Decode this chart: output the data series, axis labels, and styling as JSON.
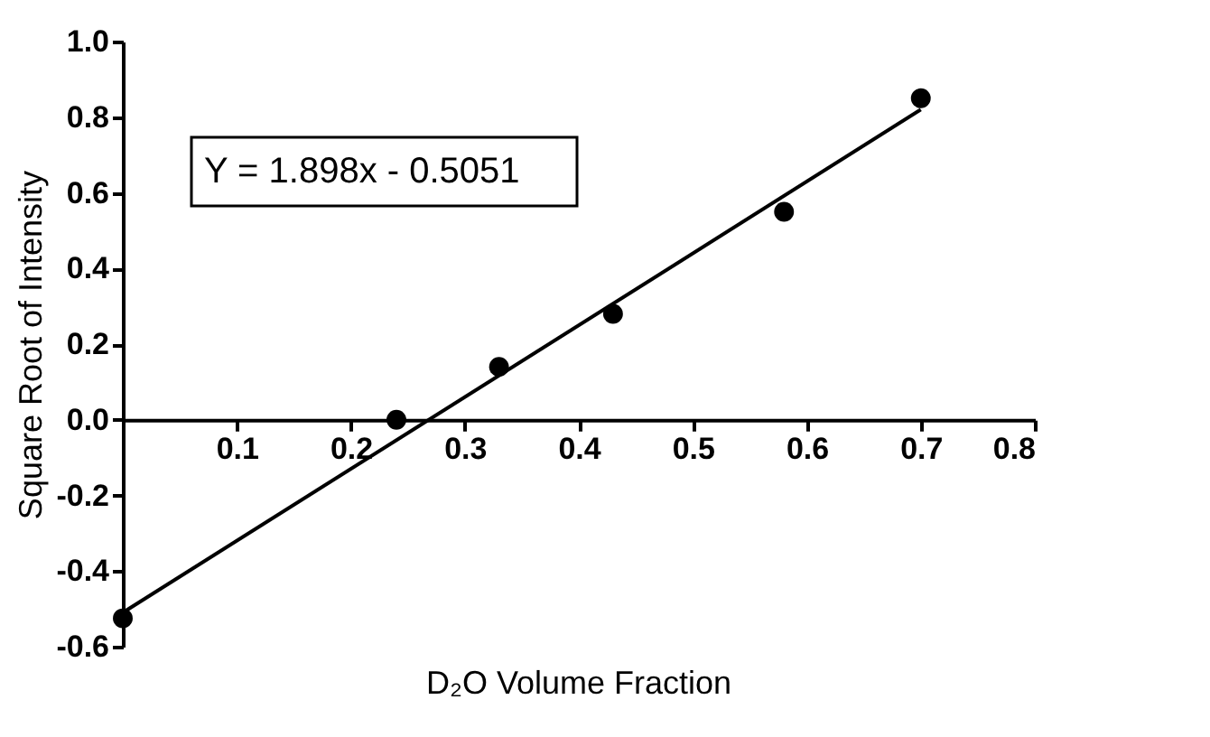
{
  "chart_data": {
    "type": "scatter",
    "xlabel": "D₂O Volume Fraction",
    "ylabel": "Square Root of Intensity",
    "annotations": [
      "Y = 1.898x - 0.5051"
    ],
    "xlim": [
      0,
      0.8
    ],
    "xticks": [
      0.1,
      0.2,
      0.3,
      0.4,
      0.5,
      0.6,
      0.7,
      0.8
    ],
    "ylim": [
      -0.6,
      1.0
    ],
    "yticks": [
      -0.6,
      -0.4,
      -0.2,
      {
        "value": 0,
        "label": "0.0"
      },
      0.2,
      0.4,
      0.6,
      0.8,
      {
        "value": 1.0,
        "label": "1.0"
      }
    ],
    "grid": false,
    "series": [
      {
        "color": "#000000",
        "marker": "circle",
        "x": [
          0,
          0.24,
          0.33,
          0.43,
          0.58,
          0.7
        ],
        "values": [
          -0.525,
          0.0,
          0.14,
          0.28,
          0.55,
          0.85
        ]
      },
      {
        "type": "line",
        "color": "#000000",
        "line_style": "solid",
        "x": [
          0,
          0.7
        ],
        "values": [
          -0.51,
          0.82
        ]
      }
    ]
  }
}
